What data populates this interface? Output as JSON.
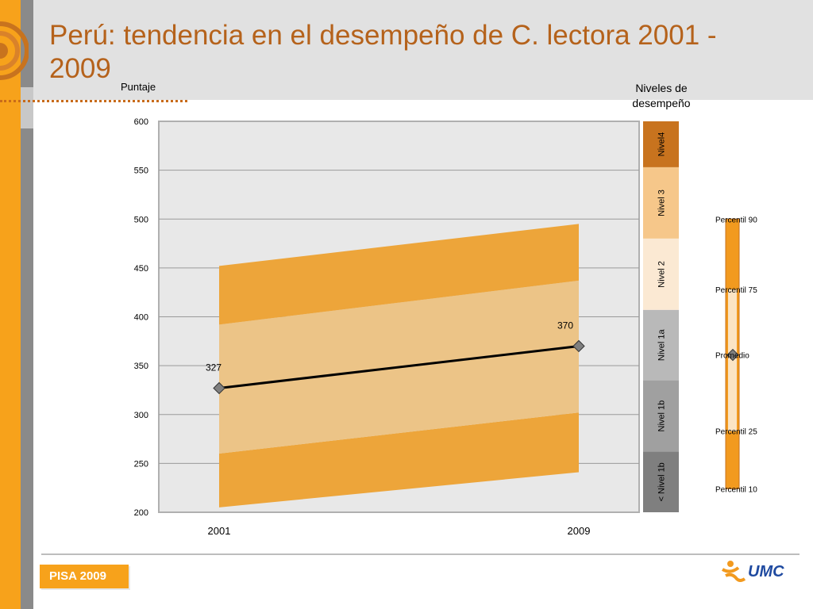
{
  "title": "Perú: tendencia en el desempeño de C. lectora 2001 - 2009",
  "footer": {
    "badge": "PISA 2009",
    "logo_text": "UMC"
  },
  "colors": {
    "accent": "#f7a21b",
    "title": "#b5621b",
    "band_outer": "#eda53a",
    "band_inner": "#ecc487",
    "line": "#000000",
    "marker": "#7f7f7f"
  },
  "chart_data": {
    "type": "line",
    "ylabel": "Puntaje",
    "ylim": [
      200,
      600
    ],
    "yticks": [
      "200",
      "250",
      "300",
      "350",
      "400",
      "450",
      "500",
      "550",
      "600"
    ],
    "categories": [
      "2001",
      "2009"
    ],
    "grid": true,
    "series": [
      {
        "values": [
          327,
          370
        ],
        "labels": [
          "327",
          "370"
        ]
      }
    ],
    "bands": {
      "p10": [
        205,
        241
      ],
      "p25": [
        260,
        302
      ],
      "p75": [
        392,
        437
      ],
      "p90": [
        452,
        495
      ]
    },
    "levels_title": "Niveles de desempeño",
    "levels": [
      {
        "name": "Nivel4",
        "from": 553,
        "to": 600,
        "color": "#c8731e"
      },
      {
        "name": "Nivel 3",
        "from": 480,
        "to": 553,
        "color": "#f6c78a"
      },
      {
        "name": "Nivel 2",
        "from": 407,
        "to": 480,
        "color": "#fbe9d3"
      },
      {
        "name": "Nivel 1a",
        "from": 335,
        "to": 407,
        "color": "#b9b9b9"
      },
      {
        "name": "Nivel 1b",
        "from": 262,
        "to": 335,
        "color": "#a0a0a0"
      },
      {
        "name": "< Nivel 1b",
        "from": 200,
        "to": 262,
        "color": "#7f7f7f"
      }
    ],
    "percentile_legend": [
      {
        "label": "Percentil 90",
        "value": 500
      },
      {
        "label": "Percentil 75",
        "value": 428
      },
      {
        "label": "Promedio",
        "value": 361
      },
      {
        "label": "Percentil 25",
        "value": 283
      },
      {
        "label": "Percentil 10",
        "value": 224
      }
    ]
  }
}
